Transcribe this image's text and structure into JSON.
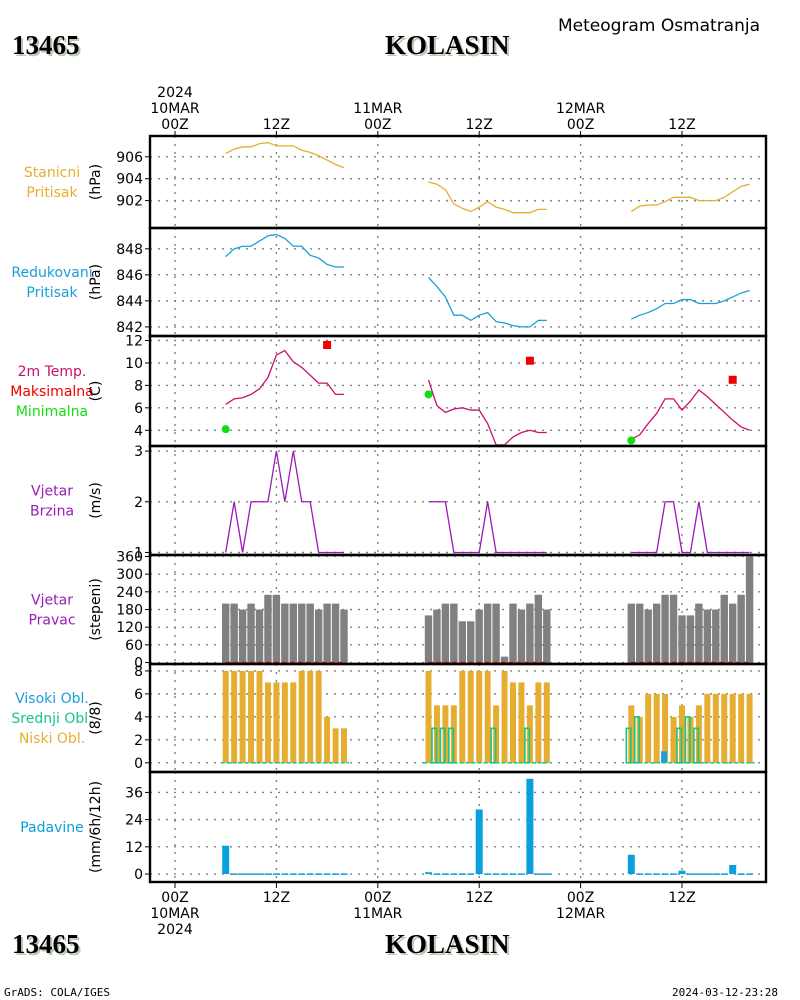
{
  "header": {
    "station_id": "13465",
    "station_name": "KOLASIN",
    "subtitle": "Meteogram Osmatranja"
  },
  "footer": {
    "station_id": "13465",
    "station_name": "KOLASIN",
    "credit": "GrADS: COLA/IGES",
    "timestamp": "2024-03-12-23:28"
  },
  "time_axis": {
    "top_labels": [
      {
        "hour": 0,
        "lines": [
          "2024",
          "10MAR",
          "00Z"
        ]
      },
      {
        "hour": 12,
        "lines": [
          "12Z"
        ]
      },
      {
        "hour": 24,
        "lines": [
          "11MAR",
          "00Z"
        ]
      },
      {
        "hour": 36,
        "lines": [
          "12Z"
        ]
      },
      {
        "hour": 48,
        "lines": [
          "12MAR",
          "00Z"
        ]
      },
      {
        "hour": 60,
        "lines": [
          "12Z"
        ]
      }
    ],
    "bottom_labels": [
      {
        "hour": 0,
        "lines": [
          "00Z",
          "10MAR",
          "2024"
        ]
      },
      {
        "hour": 12,
        "lines": [
          "12Z"
        ]
      },
      {
        "hour": 24,
        "lines": [
          "00Z",
          "11MAR"
        ]
      },
      {
        "hour": 36,
        "lines": [
          "12Z"
        ]
      },
      {
        "hour": 48,
        "lines": [
          "00Z",
          "12MAR"
        ]
      },
      {
        "hour": 60,
        "lines": [
          "12Z"
        ]
      }
    ],
    "range_hours": [
      -3,
      70
    ]
  },
  "colors": {
    "station_pressure": "#e6ae30",
    "reduced_pressure": "#1a9fd8",
    "temperature": "#c8106e",
    "t_max": "#ee0000",
    "t_min": "#11dd11",
    "wind_speed": "#9b1ab8",
    "wind_dir": "#808080",
    "wind_dir_base": "#dd0000",
    "cloud_high": "#1a9fd8",
    "cloud_mid": "#19c48a",
    "cloud_low": "#e6ae30",
    "precip": "#0aa0e0"
  },
  "chart_data": [
    {
      "type": "line",
      "id": "station_pressure",
      "labels": [
        "Stanicni",
        "Pritisak"
      ],
      "ylabel": "(hPa)",
      "yticks": [
        902,
        904,
        906
      ],
      "ylim": [
        899.5,
        907.9
      ],
      "series": [
        {
          "name": "Stanicni Pritisak",
          "x": [
            6,
            7,
            8,
            9,
            10,
            11,
            12,
            13,
            14,
            15,
            16,
            17,
            18,
            19,
            20
          ],
          "values": [
            906.3,
            906.7,
            906.9,
            906.9,
            907.2,
            907.3,
            907.0,
            907.0,
            907.0,
            906.6,
            906.4,
            906.1,
            905.7,
            905.3,
            905.0
          ]
        },
        {
          "name": "Stanicni Pritisak",
          "x": [
            30,
            31,
            32,
            33,
            34,
            35,
            36,
            37,
            38,
            39,
            40,
            41,
            42,
            43,
            44
          ],
          "values": [
            903.7,
            903.5,
            903.0,
            901.7,
            901.3,
            901.0,
            901.4,
            901.9,
            901.4,
            901.2,
            900.9,
            900.9,
            900.9,
            901.2,
            901.2
          ]
        },
        {
          "name": "Stanicni Pritisak",
          "x": [
            54,
            55,
            56,
            57,
            58,
            59,
            60,
            61,
            62,
            63,
            64,
            65,
            66,
            67,
            68
          ],
          "values": [
            901.0,
            901.5,
            901.6,
            901.6,
            901.9,
            902.3,
            902.3,
            902.3,
            902.0,
            902.0,
            902.0,
            902.3,
            902.8,
            903.3,
            903.5
          ]
        }
      ]
    },
    {
      "type": "line",
      "id": "reduced_pressure",
      "labels": [
        "Redukovani",
        "Pritisak"
      ],
      "ylabel": "(hPa)",
      "yticks": [
        842,
        844,
        846,
        848
      ],
      "ylim": [
        841.3,
        849.6
      ],
      "series": [
        {
          "name": "Redukovani Pritisak",
          "x": [
            6,
            7,
            8,
            9,
            10,
            11,
            12,
            13,
            14,
            15,
            16,
            17,
            18,
            19,
            20
          ],
          "values": [
            847.4,
            848.0,
            848.2,
            848.2,
            848.6,
            849.0,
            849.1,
            848.8,
            848.2,
            848.2,
            847.5,
            847.3,
            846.8,
            846.6,
            846.6
          ]
        },
        {
          "name": "Redukovani Pritisak",
          "x": [
            30,
            31,
            32,
            33,
            34,
            35,
            36,
            37,
            38,
            39,
            40,
            41,
            42,
            43,
            44
          ],
          "values": [
            845.8,
            845.1,
            844.3,
            842.9,
            842.9,
            842.5,
            842.9,
            843.1,
            842.4,
            842.3,
            842.1,
            842.0,
            842.0,
            842.5,
            842.5
          ]
        },
        {
          "name": "Redukovani Pritisak",
          "x": [
            54,
            55,
            56,
            57,
            58,
            59,
            60,
            61,
            62,
            63,
            64,
            65,
            66,
            67,
            68
          ],
          "values": [
            842.6,
            842.9,
            843.1,
            843.4,
            843.8,
            843.8,
            844.1,
            844.1,
            843.8,
            843.8,
            843.8,
            844.0,
            844.3,
            844.6,
            844.8
          ]
        }
      ]
    },
    {
      "type": "line",
      "id": "temperature",
      "labels": [
        "2m Temp.",
        "Maksimalna",
        "Minimalna"
      ],
      "ylabel": "(C)",
      "yticks": [
        4,
        6,
        8,
        10,
        12
      ],
      "ylim": [
        2.6,
        12.4
      ],
      "series": [
        {
          "name": "2m Temp.",
          "x": [
            6,
            7,
            8,
            9,
            10,
            11,
            12,
            13,
            14,
            15,
            16,
            17,
            18,
            19,
            20
          ],
          "values": [
            6.3,
            6.8,
            6.9,
            7.2,
            7.7,
            8.7,
            10.7,
            11.1,
            10.1,
            9.6,
            8.9,
            8.2,
            8.2,
            7.2,
            7.2
          ]
        },
        {
          "name": "2m Temp.",
          "x": [
            30,
            30.5,
            31,
            32,
            33,
            34,
            35,
            36,
            37,
            38,
            39,
            40,
            41,
            42,
            43,
            44
          ],
          "values": [
            8.5,
            7.3,
            6.2,
            5.6,
            5.9,
            6.0,
            5.8,
            5.8,
            4.6,
            2.7,
            2.7,
            3.4,
            3.8,
            4.0,
            3.8,
            3.8
          ]
        },
        {
          "name": "2m Temp.",
          "x": [
            54,
            55,
            56,
            57,
            58,
            59,
            60,
            61,
            62,
            63,
            64,
            65,
            66,
            67,
            68
          ],
          "values": [
            3.2,
            3.6,
            4.6,
            5.5,
            6.8,
            6.8,
            5.8,
            6.6,
            7.6,
            7.0,
            6.3,
            5.6,
            4.9,
            4.3,
            4.0
          ]
        },
        {
          "name": "Maksimalna",
          "x": [
            18,
            42,
            66
          ],
          "values": [
            11.6,
            10.2,
            8.5
          ]
        },
        {
          "name": "Minimalna",
          "x": [
            6,
            30,
            54
          ],
          "values": [
            4.1,
            7.2,
            3.1
          ]
        }
      ]
    },
    {
      "type": "line",
      "id": "wind_speed",
      "labels": [
        "Vjetar",
        "Brzina"
      ],
      "ylabel": "(m/s)",
      "yticks": [
        1,
        2,
        3
      ],
      "ylim": [
        0.95,
        3.1
      ],
      "series": [
        {
          "name": "Vjetar Brzina",
          "x": [
            6,
            7,
            8,
            9,
            10,
            11,
            12,
            13,
            14,
            15,
            16,
            17,
            18,
            19,
            20
          ],
          "values": [
            1,
            2,
            1,
            2,
            2,
            2,
            3,
            2,
            3,
            2,
            2,
            1,
            1,
            1,
            1
          ]
        },
        {
          "name": "Vjetar Brzina",
          "x": [
            30,
            31,
            32,
            33,
            34,
            35,
            36,
            37,
            38,
            39,
            40,
            41,
            42,
            43,
            44
          ],
          "values": [
            2,
            2,
            2,
            1,
            1,
            1,
            1,
            2,
            1,
            1,
            1,
            1,
            1,
            1,
            1
          ]
        },
        {
          "name": "Vjetar Brzina",
          "x": [
            54,
            55,
            56,
            57,
            58,
            59,
            60,
            61,
            62,
            63,
            64,
            65,
            66,
            67,
            68
          ],
          "values": [
            1,
            1,
            1,
            1,
            2,
            2,
            1,
            1,
            2,
            1,
            1,
            1,
            1,
            1,
            1
          ]
        }
      ]
    },
    {
      "type": "bar",
      "id": "wind_direction",
      "labels": [
        "Vjetar",
        "Pravac"
      ],
      "ylabel": "(stepeni)",
      "yticks": [
        0,
        60,
        120,
        180,
        240,
        300,
        360
      ],
      "ylim": [
        -5,
        365
      ],
      "x": [
        6,
        7,
        8,
        9,
        10,
        11,
        12,
        13,
        14,
        15,
        16,
        17,
        18,
        19,
        20,
        30,
        31,
        32,
        33,
        34,
        35,
        36,
        37,
        38,
        39,
        40,
        41,
        42,
        43,
        44,
        54,
        55,
        56,
        57,
        58,
        59,
        60,
        61,
        62,
        63,
        64,
        65,
        66,
        67,
        68
      ],
      "series": [
        {
          "name": "Vjetar Pravac",
          "values": [
            200,
            200,
            180,
            200,
            180,
            230,
            230,
            200,
            200,
            200,
            200,
            180,
            200,
            200,
            180,
            160,
            180,
            200,
            200,
            140,
            140,
            180,
            200,
            200,
            20,
            200,
            180,
            200,
            230,
            180,
            200,
            200,
            180,
            200,
            230,
            230,
            160,
            160,
            200,
            180,
            180,
            230,
            200,
            230,
            360
          ]
        }
      ]
    },
    {
      "type": "bar",
      "id": "clouds",
      "labels": [
        "Visoki Obl.",
        "Srednji Obl.",
        "Niski Obl."
      ],
      "ylabel": "(8/8)",
      "yticks": [
        0,
        2,
        4,
        6,
        8
      ],
      "ylim": [
        -0.8,
        8.6
      ],
      "x": [
        6,
        7,
        8,
        9,
        10,
        11,
        12,
        13,
        14,
        15,
        16,
        17,
        18,
        19,
        20,
        30,
        31,
        32,
        33,
        34,
        35,
        36,
        37,
        38,
        39,
        40,
        41,
        42,
        43,
        44,
        54,
        55,
        56,
        57,
        58,
        59,
        60,
        61,
        62,
        63,
        64,
        65,
        66,
        67,
        68
      ],
      "series": [
        {
          "name": "Niski Obl.",
          "values": [
            8,
            8,
            8,
            8,
            8,
            7,
            7,
            7,
            7,
            8,
            8,
            8,
            4,
            3,
            3,
            8,
            5,
            5,
            5,
            8,
            8,
            8,
            8,
            5,
            8,
            7,
            7,
            5,
            7,
            7,
            5,
            4,
            6,
            6,
            6,
            4,
            5,
            4,
            5,
            6,
            6,
            6,
            6,
            6,
            6
          ]
        },
        {
          "name": "Srednji Obl.",
          "values": [
            0,
            0,
            0,
            0,
            0,
            0,
            0,
            0,
            0,
            0,
            0,
            0,
            0,
            0,
            0,
            0,
            3,
            3,
            3,
            0,
            0,
            0,
            0,
            3,
            0,
            0,
            0,
            3,
            0,
            0,
            3,
            4,
            0,
            0,
            0,
            0,
            3,
            4,
            3,
            0,
            0,
            0,
            0,
            0,
            0
          ]
        },
        {
          "name": "Visoki Obl.",
          "values": [
            0,
            0,
            0,
            0,
            0,
            0,
            0,
            0,
            0,
            0,
            0,
            0,
            0,
            0,
            0,
            0,
            0,
            0,
            0,
            0,
            0,
            0,
            0,
            0,
            0,
            0,
            0,
            0,
            0,
            0,
            0,
            0,
            0,
            0,
            1,
            0,
            0,
            0,
            0,
            0,
            0,
            0,
            0,
            0,
            0
          ]
        }
      ]
    },
    {
      "type": "bar",
      "id": "precipitation",
      "labels": [
        "Padavine"
      ],
      "ylabel": "(mm/6h/12h)",
      "yticks": [
        0,
        12,
        24,
        36
      ],
      "ylim": [
        -3.5,
        45
      ],
      "x": [
        6,
        7,
        8,
        9,
        10,
        11,
        12,
        13,
        14,
        15,
        16,
        17,
        18,
        19,
        20,
        30,
        31,
        32,
        33,
        34,
        35,
        36,
        37,
        38,
        39,
        40,
        41,
        42,
        43,
        44,
        54,
        55,
        56,
        57,
        58,
        59,
        60,
        61,
        62,
        63,
        64,
        65,
        66,
        67,
        68
      ],
      "series": [
        {
          "name": "Padavine",
          "values": [
            12.5,
            0.3,
            0.3,
            0.3,
            0.3,
            0.3,
            0.3,
            0.3,
            0.3,
            0.3,
            0.3,
            0.3,
            0.3,
            0.3,
            0.3,
            0.8,
            0.3,
            0.3,
            0.3,
            0.3,
            0.3,
            28.5,
            0.3,
            0.3,
            0.3,
            0.3,
            0.3,
            42.0,
            0.3,
            0.3,
            8.5,
            0.3,
            0.3,
            0.3,
            0.3,
            0.3,
            1.5,
            0.3,
            0.3,
            0.3,
            0.3,
            0.3,
            4.0,
            0.3,
            0.3
          ]
        }
      ]
    }
  ]
}
